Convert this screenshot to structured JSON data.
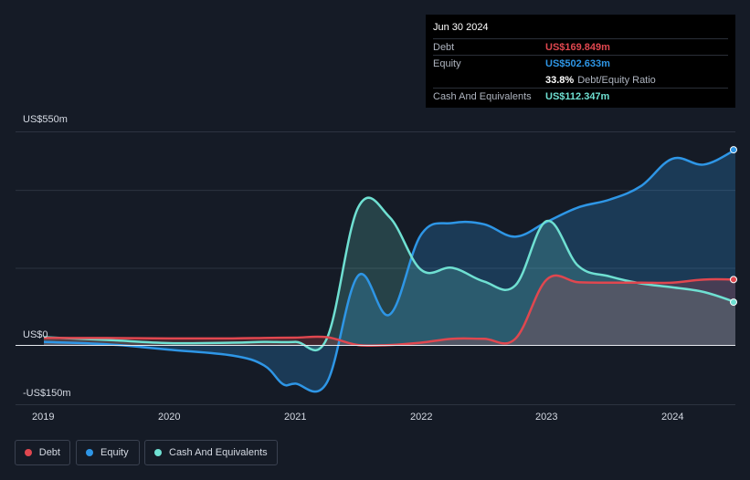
{
  "tooltip": {
    "date": "Jun 30 2024",
    "rows": [
      {
        "label": "Debt",
        "value": "US$169.849m",
        "color": "#e0474f"
      },
      {
        "label": "Equity",
        "value": "US$502.633m",
        "color": "#2e96e6"
      },
      {
        "label": "",
        "value": "33.8%",
        "suffix": "Debt/Equity Ratio"
      },
      {
        "label": "Cash And Equivalents",
        "value": "US$112.347m",
        "color": "#6fe0d2"
      }
    ]
  },
  "legend": [
    {
      "label": "Debt",
      "color": "#e0474f"
    },
    {
      "label": "Equity",
      "color": "#2e96e6"
    },
    {
      "label": "Cash And Equivalents",
      "color": "#6fe0d2"
    }
  ],
  "chart_data": {
    "type": "area",
    "y_tick_labels": [
      "US$550m",
      "US$0",
      "-US$150m"
    ],
    "y_ticks": [
      550,
      0,
      -150
    ],
    "ylim": [
      -150,
      550
    ],
    "x_tick_labels": [
      "2019",
      "2020",
      "2021",
      "2022",
      "2023",
      "2024"
    ],
    "xlim": [
      2019.0,
      2024.5
    ],
    "series": [
      {
        "name": "Debt",
        "color": "#e0474f",
        "x": [
          2019.0,
          2019.5,
          2020.0,
          2020.5,
          2020.75,
          2021.0,
          2021.25,
          2021.5,
          2021.75,
          2022.0,
          2022.25,
          2022.5,
          2022.75,
          2023.0,
          2023.25,
          2023.5,
          2023.75,
          2024.0,
          2024.25,
          2024.5
        ],
        "values": [
          20,
          20,
          19,
          19,
          20,
          21,
          22,
          2,
          2,
          8,
          18,
          18,
          18,
          170,
          163,
          162,
          162,
          162,
          170,
          170
        ]
      },
      {
        "name": "Equity",
        "color": "#2e96e6",
        "x": [
          2019.0,
          2019.5,
          2020.0,
          2020.5,
          2020.75,
          2020.9,
          2021.0,
          2021.25,
          2021.5,
          2021.75,
          2022.0,
          2022.25,
          2022.5,
          2022.75,
          2023.0,
          2023.25,
          2023.5,
          2023.75,
          2024.0,
          2024.25,
          2024.5
        ],
        "values": [
          10,
          4,
          -10,
          -25,
          -50,
          -98,
          -97,
          -95,
          180,
          80,
          285,
          315,
          312,
          280,
          318,
          355,
          375,
          410,
          480,
          465,
          503
        ]
      },
      {
        "name": "Cash And Equivalents",
        "color": "#6fe0d2",
        "x": [
          2019.0,
          2019.5,
          2020.0,
          2020.5,
          2020.75,
          2021.0,
          2021.25,
          2021.5,
          2021.75,
          2022.0,
          2022.25,
          2022.5,
          2022.75,
          2023.0,
          2023.25,
          2023.5,
          2023.75,
          2024.0,
          2024.25,
          2024.5
        ],
        "values": [
          22,
          15,
          7,
          8,
          10,
          10,
          18,
          355,
          330,
          195,
          200,
          165,
          155,
          320,
          205,
          178,
          160,
          150,
          138,
          112
        ]
      }
    ]
  }
}
